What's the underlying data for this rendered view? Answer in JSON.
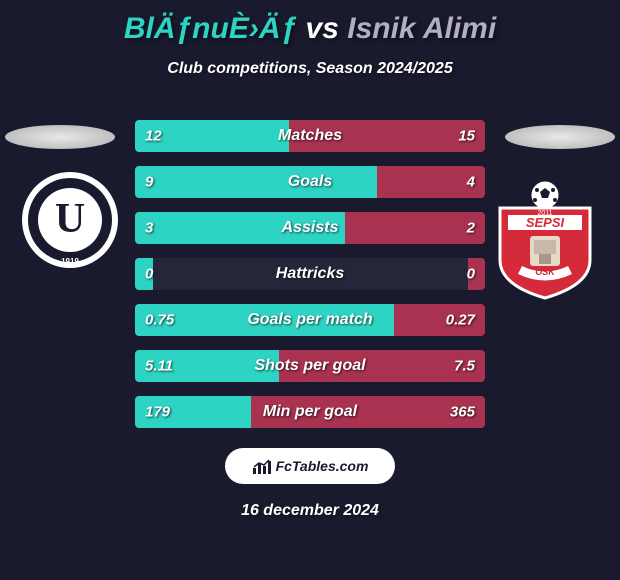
{
  "title": {
    "player1": "BlÄƒnuÈ›Äƒ",
    "vs": " vs ",
    "player2": "Isnik Alimi",
    "color1": "#2dd4c4",
    "color_vs": "#ffffff",
    "color2": "#b0b0c0"
  },
  "subtitle": "Club competitions, Season 2024/2025",
  "team1_color": "#2dd4c4",
  "team2_color": "#a83250",
  "bars": [
    {
      "label": "Matches",
      "v1": "12",
      "v2": "15",
      "f1": 0.44,
      "f2": 0.56
    },
    {
      "label": "Goals",
      "v1": "9",
      "v2": "4",
      "f1": 0.69,
      "f2": 0.31
    },
    {
      "label": "Assists",
      "v1": "3",
      "v2": "2",
      "f1": 0.6,
      "f2": 0.4
    },
    {
      "label": "Hattricks",
      "v1": "0",
      "v2": "0",
      "f1": 0.05,
      "f2": 0.05
    },
    {
      "label": "Goals per match",
      "v1": "0.75",
      "v2": "0.27",
      "f1": 0.74,
      "f2": 0.26
    },
    {
      "label": "Shots per goal",
      "v1": "5.11",
      "v2": "7.5",
      "f1": 0.41,
      "f2": 0.59
    },
    {
      "label": "Min per goal",
      "v1": "179",
      "v2": "365",
      "f1": 0.33,
      "f2": 0.67
    }
  ],
  "logo_text": "FcTables.com",
  "date": "16 december 2024",
  "crest1": {
    "ring_outer": "#ffffff",
    "ring_inner": "#1a1a2e",
    "letter": "U",
    "year": "1919"
  },
  "crest2": {
    "shield_main": "#d42a3a",
    "shield_stripe": "#ffffff",
    "year": "2011",
    "name_top": "SEPSI",
    "name_bottom": "OSK"
  }
}
